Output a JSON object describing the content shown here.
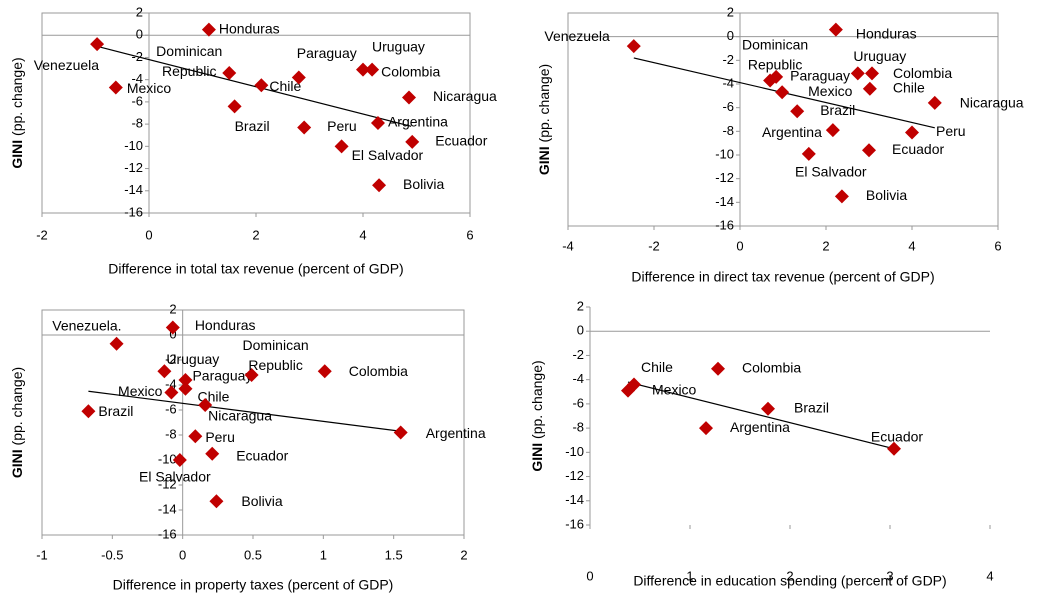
{
  "chart_data": [
    {
      "type": "scatter",
      "xlabel": "Difference in total tax revenue (percent of GDP)",
      "ylabel": [
        "GINI",
        "(pp. change)"
      ],
      "labels": [
        "Honduras",
        "Venezuela",
        "Mexico",
        "Dominican Republic",
        "Chile",
        "Brazil",
        "Paraguay",
        "Peru",
        "Uruguay",
        "Colombia",
        "Nicaragua",
        "Argentina",
        "El Salvador",
        "Ecuador",
        "Bolivia"
      ],
      "x": [
        1.12,
        -0.97,
        -0.62,
        1.5,
        2.1,
        1.6,
        2.8,
        2.9,
        4.0,
        4.17,
        4.86,
        4.28,
        3.6,
        4.92,
        4.3
      ],
      "values": [
        0.5,
        -0.8,
        -4.7,
        -3.4,
        -4.5,
        -6.4,
        -3.8,
        -8.3,
        -3.1,
        -3.1,
        -5.6,
        -7.9,
        -10.0,
        -9.6,
        -13.5
      ],
      "trend": {
        "x": [
          -0.97,
          4.9
        ],
        "y": [
          -1.0,
          -8.2
        ]
      },
      "color": "#c00000",
      "xlim": [
        -2,
        6
      ],
      "xticks": [
        -2,
        0,
        2,
        4,
        6
      ],
      "ylim": [
        -16,
        2
      ],
      "yticks": [
        2,
        0,
        -2,
        -4,
        -6,
        -8,
        -10,
        -12,
        -14,
        -16
      ]
    },
    {
      "type": "scatter",
      "xlabel": "Difference in direct tax revenue (percent of GDP)",
      "ylabel": [
        "GINI",
        "(pp. change)"
      ],
      "labels": [
        "Venezuela",
        "Honduras",
        "Dominican Republic",
        "Paraguay",
        "Uruguay",
        "Colombia",
        "Chile",
        "Mexico",
        "Brazil",
        "Nicaragua",
        "Argentina",
        "Peru",
        "Ecuador",
        "El Salvador",
        "Bolivia"
      ],
      "x": [
        -2.47,
        2.23,
        0.7,
        0.84,
        2.74,
        3.07,
        3.02,
        0.98,
        1.33,
        4.53,
        2.16,
        4.0,
        3.0,
        1.6,
        2.37
      ],
      "values": [
        -0.8,
        0.6,
        -3.7,
        -3.4,
        -3.1,
        -3.1,
        -4.4,
        -4.7,
        -6.3,
        -5.6,
        -7.9,
        -8.1,
        -9.6,
        -9.9,
        -13.5
      ],
      "trend": {
        "x": [
          -2.47,
          4.53
        ],
        "y": [
          -1.8,
          -7.7
        ]
      },
      "color": "#c00000",
      "xlim": [
        -4,
        6
      ],
      "xticks": [
        -4,
        -2,
        0,
        2,
        4,
        6
      ],
      "ylim": [
        -16,
        2
      ],
      "yticks": [
        2,
        0,
        -2,
        -4,
        -6,
        -8,
        -10,
        -12,
        -14,
        -16
      ]
    },
    {
      "type": "scatter",
      "xlabel": "Difference in property taxes (percent of GDP)",
      "ylabel": [
        "GINI",
        "(pp. change)"
      ],
      "labels": [
        "Venezuela.",
        "Honduras",
        "Uruguay",
        "Paraguay",
        "Dominican Republic",
        "Colombia",
        "Mexico",
        "Chile",
        "Nicaragua",
        "Brazil",
        "Peru",
        "Ecuador",
        "Argentina",
        "El Salvador",
        "Bolivia"
      ],
      "x": [
        -0.47,
        -0.07,
        -0.13,
        0.02,
        0.49,
        1.01,
        -0.08,
        0.02,
        0.16,
        -0.67,
        0.09,
        0.21,
        1.55,
        -0.02,
        0.24
      ],
      "values": [
        -0.7,
        0.6,
        -2.9,
        -3.6,
        -3.2,
        -2.9,
        -4.6,
        -4.3,
        -5.6,
        -6.1,
        -8.1,
        -9.5,
        -7.8,
        -10.0,
        -13.3
      ],
      "trend": {
        "x": [
          -0.67,
          1.55
        ],
        "y": [
          -4.5,
          -7.7
        ]
      },
      "color": "#c00000",
      "xlim": [
        -1,
        2
      ],
      "xticks": [
        -1,
        -0.5,
        0,
        0.5,
        1,
        1.5,
        2
      ],
      "ylim": [
        -16,
        2
      ],
      "yticks": [
        2,
        0,
        -2,
        -4,
        -6,
        -8,
        -10,
        -12,
        -14,
        -16
      ]
    },
    {
      "type": "scatter",
      "xlabel": "Difference in education spending (percent of GDP)",
      "ylabel": [
        "GINI",
        "(pp. change)"
      ],
      "labels": [
        "Chile",
        "Mexico",
        "Colombia",
        "Brazil",
        "Argentina",
        "Ecuador"
      ],
      "x": [
        0.44,
        0.38,
        1.28,
        1.78,
        1.16,
        3.04
      ],
      "values": [
        -4.4,
        -4.9,
        -3.1,
        -6.4,
        -8.0,
        -9.7
      ],
      "trend": {
        "x": [
          0.38,
          3.04
        ],
        "y": [
          -4.2,
          -9.7
        ]
      },
      "color": "#c00000",
      "xlim": [
        0,
        4
      ],
      "xticks": [
        0,
        1,
        2,
        3,
        4
      ],
      "ylim": [
        -16,
        2
      ],
      "yticks": [
        2,
        0,
        -2,
        -4,
        -6,
        -8,
        -10,
        -12,
        -14,
        -16
      ]
    }
  ]
}
